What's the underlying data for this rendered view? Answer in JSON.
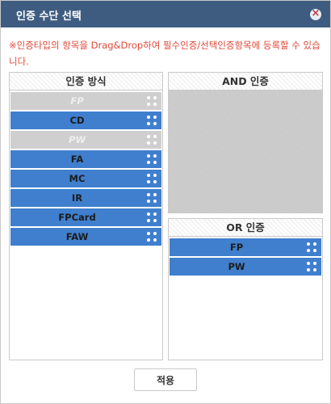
{
  "dialog": {
    "title": "인증 수단 선택",
    "notice": "※인증타입의 항목을 Drag&Drop하여 필수인증/선택인증항목에 등록할 수 있습니다.",
    "apply_label": "적용"
  },
  "methods_panel": {
    "title": "인증 방식",
    "items": [
      {
        "label": "FP",
        "enabled": false
      },
      {
        "label": "CD",
        "enabled": true
      },
      {
        "label": "PW",
        "enabled": false
      },
      {
        "label": "FA",
        "enabled": true
      },
      {
        "label": "MC",
        "enabled": true
      },
      {
        "label": "IR",
        "enabled": true
      },
      {
        "label": "FPCard",
        "enabled": true
      },
      {
        "label": "FAW",
        "enabled": true
      }
    ]
  },
  "and_panel": {
    "title": "AND 인증",
    "items": []
  },
  "or_panel": {
    "title": "OR 인증",
    "items": [
      {
        "label": "FP",
        "enabled": true
      },
      {
        "label": "PW",
        "enabled": true
      }
    ]
  },
  "icons": {
    "close": "close-icon",
    "drag": "drag-handle-icon"
  },
  "colors": {
    "title_bar": "#3e5c80",
    "item_active": "#3f7fce",
    "item_disabled": "#cfcfcf",
    "notice": "#e0493a"
  }
}
